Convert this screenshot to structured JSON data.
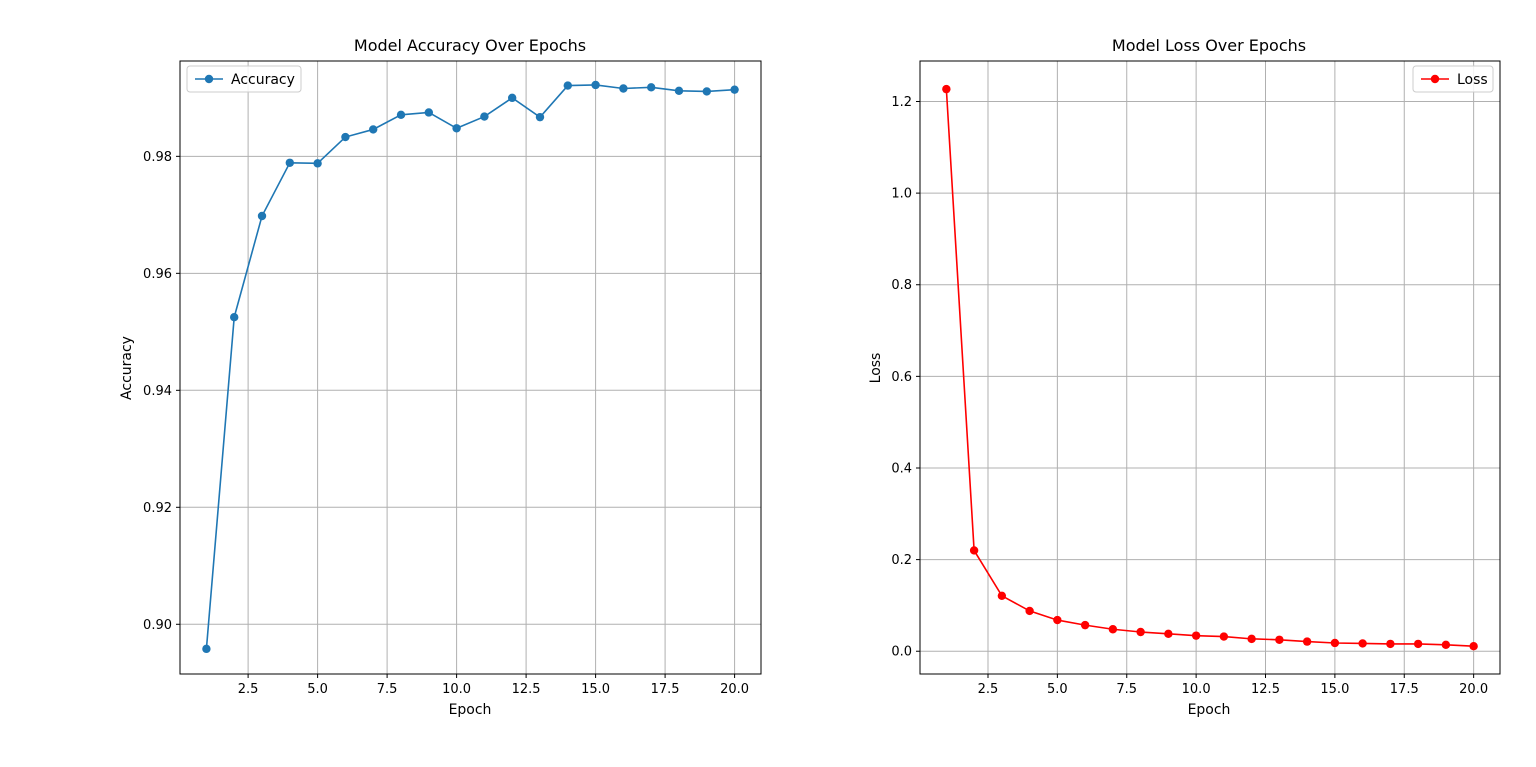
{
  "chart_data": [
    {
      "type": "line",
      "title": "Model Accuracy Over Epochs",
      "xlabel": "Epoch",
      "ylabel": "Accuracy",
      "xlim": [
        0.05,
        20.95
      ],
      "ylim": [
        0.8915,
        0.9963
      ],
      "xticks": [
        2.5,
        5.0,
        7.5,
        10.0,
        12.5,
        15.0,
        17.5,
        20.0
      ],
      "xtick_labels": [
        "2.5",
        "5.0",
        "7.5",
        "10.0",
        "12.5",
        "15.0",
        "17.5",
        "20.0"
      ],
      "yticks": [
        0.9,
        0.92,
        0.94,
        0.96,
        0.98
      ],
      "ytick_labels": [
        "0.90",
        "0.92",
        "0.94",
        "0.96",
        "0.98"
      ],
      "grid": true,
      "legend_position": "top-left",
      "series": [
        {
          "name": "Accuracy",
          "color": "#1f77b4",
          "marker": "circle",
          "x": [
            1,
            2,
            3,
            4,
            5,
            6,
            7,
            8,
            9,
            10,
            11,
            12,
            13,
            14,
            15,
            16,
            17,
            18,
            19,
            20
          ],
          "y": [
            0.8958,
            0.9525,
            0.9698,
            0.9789,
            0.9788,
            0.9833,
            0.9846,
            0.9871,
            0.9875,
            0.9848,
            0.9868,
            0.99,
            0.9867,
            0.9921,
            0.9922,
            0.9916,
            0.9918,
            0.9912,
            0.9911,
            0.9914
          ]
        }
      ]
    },
    {
      "type": "line",
      "title": "Model Loss Over Epochs",
      "xlabel": "Epoch",
      "ylabel": "Loss",
      "xlim": [
        0.05,
        20.95
      ],
      "ylim": [
        -0.0497,
        1.2884
      ],
      "xticks": [
        2.5,
        5.0,
        7.5,
        10.0,
        12.5,
        15.0,
        17.5,
        20.0
      ],
      "xtick_labels": [
        "2.5",
        "5.0",
        "7.5",
        "10.0",
        "12.5",
        "15.0",
        "17.5",
        "20.0"
      ],
      "yticks": [
        0.0,
        0.2,
        0.4,
        0.6,
        0.8,
        1.0,
        1.2
      ],
      "ytick_labels": [
        "0.0",
        "0.2",
        "0.4",
        "0.6",
        "0.8",
        "1.0",
        "1.2"
      ],
      "grid": true,
      "legend_position": "top-right",
      "series": [
        {
          "name": "Loss",
          "color": "#ff0000",
          "marker": "circle",
          "x": [
            1,
            2,
            3,
            4,
            5,
            6,
            7,
            8,
            9,
            10,
            11,
            12,
            13,
            14,
            15,
            16,
            17,
            18,
            19,
            20
          ],
          "y": [
            1.227,
            0.22,
            0.121,
            0.088,
            0.068,
            0.057,
            0.048,
            0.042,
            0.038,
            0.034,
            0.032,
            0.027,
            0.025,
            0.021,
            0.018,
            0.017,
            0.016,
            0.016,
            0.014,
            0.011
          ]
        }
      ]
    }
  ]
}
